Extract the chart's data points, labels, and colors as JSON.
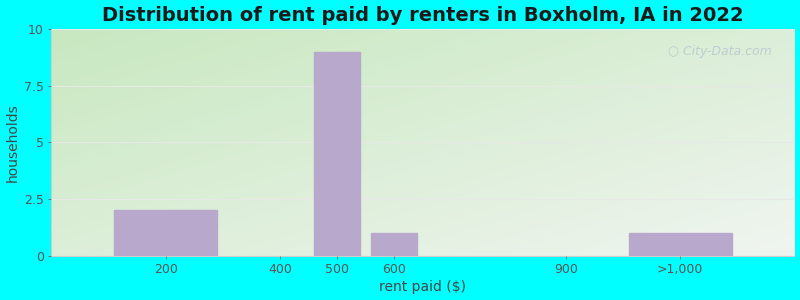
{
  "title": "Distribution of rent paid by renters in Boxholm, IA in 2022",
  "xlabel": "rent paid ($)",
  "ylabel": "households",
  "categories": [
    "200",
    "400",
    "500",
    "600",
    "900",
    ">1,000"
  ],
  "x_positions": [
    200,
    400,
    500,
    600,
    900,
    1100
  ],
  "x_widths": [
    200,
    100,
    100,
    100,
    100,
    200
  ],
  "values": [
    2,
    0,
    9,
    1,
    0,
    1
  ],
  "bar_color": "#b8a8cc",
  "ylim": [
    0,
    10
  ],
  "yticks": [
    0,
    2.5,
    5,
    7.5,
    10
  ],
  "xlim": [
    0,
    1300
  ],
  "xtick_positions": [
    200,
    400,
    500,
    600,
    900,
    1100
  ],
  "xtick_labels": [
    "200",
    "400",
    "500",
    "600",
    "900",
    ">1,000"
  ],
  "bg_outer": "#00ffff",
  "bg_inner_topleft": "#c8e8c0",
  "bg_inner_bottomright": "#f0f5f0",
  "title_fontsize": 14,
  "axis_label_fontsize": 10,
  "tick_fontsize": 9,
  "watermark_text": "City-Data.com",
  "watermark_color": "#b8c8d0",
  "grid_color": "#e8e8e8"
}
